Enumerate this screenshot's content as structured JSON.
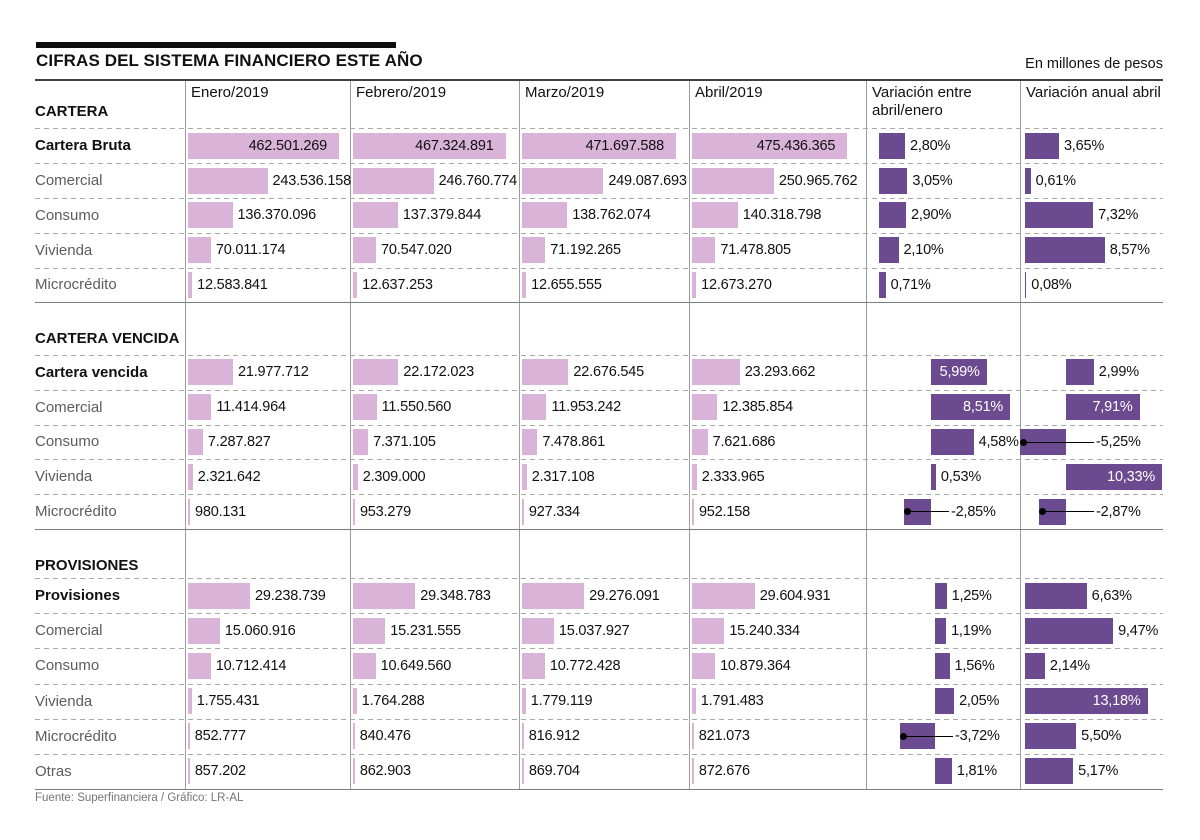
{
  "title": "CIFRAS DEL SISTEMA FINANCIERO ESTE AÑO",
  "unit_note": "En millones de pesos",
  "source_note": "Fuente: Superfinanciera / Gráfico: LR-AL",
  "colors": {
    "bar_light": "#d9b3d8",
    "bar_dark": "#6b4a8f",
    "negative_dot": "#000000"
  },
  "chart_data": {
    "type": "table",
    "unit": "millones de pesos",
    "month_columns": [
      "Enero/2019",
      "Febrero/2019",
      "Marzo/2019",
      "Abril/2019"
    ],
    "variation_columns": [
      "Variación entre abril/enero",
      "Variación anual abril"
    ],
    "sections": [
      {
        "name": "CARTERA",
        "rows": [
          {
            "label": "Cartera Bruta",
            "emphasis": true,
            "inside": true,
            "values": [
              462501269,
              467324891,
              471697588,
              475436365
            ],
            "value_labels": [
              "462.501.269",
              "467.324.891",
              "471.697.588",
              "475.436.365"
            ],
            "var_period": {
              "value": 2.8,
              "label": "2,80%",
              "inside": false
            },
            "var_annual": {
              "value": 3.65,
              "label": "3,65%",
              "inside": false
            }
          },
          {
            "label": "Comercial",
            "emphasis": false,
            "inside": false,
            "values": [
              243536158,
              246760774,
              249087693,
              250965762
            ],
            "value_labels": [
              "243.536.158",
              "246.760.774",
              "249.087.693",
              "250.965.762"
            ],
            "var_period": {
              "value": 3.05,
              "label": "3,05%",
              "inside": false
            },
            "var_annual": {
              "value": 0.61,
              "label": "0,61%",
              "inside": false
            }
          },
          {
            "label": "Consumo",
            "emphasis": false,
            "inside": false,
            "values": [
              136370096,
              137379844,
              138762074,
              140318798
            ],
            "value_labels": [
              "136.370.096",
              "137.379.844",
              "138.762.074",
              "140.318.798"
            ],
            "var_period": {
              "value": 2.9,
              "label": "2,90%",
              "inside": false
            },
            "var_annual": {
              "value": 7.32,
              "label": "7,32%",
              "inside": false
            }
          },
          {
            "label": "Vivienda",
            "emphasis": false,
            "inside": false,
            "values": [
              70011174,
              70547020,
              71192265,
              71478805
            ],
            "value_labels": [
              "70.011.174",
              "70.547.020",
              "71.192.265",
              "71.478.805"
            ],
            "var_period": {
              "value": 2.1,
              "label": "2,10%",
              "inside": false
            },
            "var_annual": {
              "value": 8.57,
              "label": "8,57%",
              "inside": false
            }
          },
          {
            "label": "Microcrédito",
            "emphasis": false,
            "inside": false,
            "values": [
              12583841,
              12637253,
              12655555,
              12673270
            ],
            "value_labels": [
              "12.583.841",
              "12.637.253",
              "12.655.555",
              "12.673.270"
            ],
            "var_period": {
              "value": 0.71,
              "label": "0,71%",
              "inside": false
            },
            "var_annual": {
              "value": 0.08,
              "label": "0,08%",
              "inside": false
            }
          }
        ]
      },
      {
        "name": "CARTERA VENCIDA",
        "rows": [
          {
            "label": "Cartera vencida",
            "emphasis": true,
            "inside": false,
            "values": [
              21977712,
              22172023,
              22676545,
              23293662
            ],
            "value_labels": [
              "21.977.712",
              "22.172.023",
              "22.676.545",
              "23.293.662"
            ],
            "var_period": {
              "value": 5.99,
              "label": "5,99%",
              "inside": true
            },
            "var_annual": {
              "value": 2.99,
              "label": "2,99%",
              "inside": false
            }
          },
          {
            "label": "Comercial",
            "emphasis": false,
            "inside": false,
            "values": [
              11414964,
              11550560,
              11953242,
              12385854
            ],
            "value_labels": [
              "11.414.964",
              "11.550.560",
              "11.953.242",
              "12.385.854"
            ],
            "var_period": {
              "value": 8.51,
              "label": "8,51%",
              "inside": true
            },
            "var_annual": {
              "value": 7.91,
              "label": "7,91%",
              "inside": true
            }
          },
          {
            "label": "Consumo",
            "emphasis": false,
            "inside": false,
            "values": [
              7287827,
              7371105,
              7478861,
              7621686
            ],
            "value_labels": [
              "7.287.827",
              "7.371.105",
              "7.478.861",
              "7.621.686"
            ],
            "var_period": {
              "value": 4.58,
              "label": "4,58%",
              "inside": false
            },
            "var_annual": {
              "value": -5.25,
              "label": "-5,25%",
              "inside": false
            }
          },
          {
            "label": "Vivienda",
            "emphasis": false,
            "inside": false,
            "values": [
              2321642,
              2309000,
              2317108,
              2333965
            ],
            "value_labels": [
              "2.321.642",
              "2.309.000",
              "2.317.108",
              "2.333.965"
            ],
            "var_period": {
              "value": 0.53,
              "label": "0,53%",
              "inside": false
            },
            "var_annual": {
              "value": 10.33,
              "label": "10,33%",
              "inside": true
            }
          },
          {
            "label": "Microcrédito",
            "emphasis": false,
            "inside": false,
            "values": [
              980131,
              953279,
              927334,
              952158
            ],
            "value_labels": [
              "980.131",
              "953.279",
              "927.334",
              "952.158"
            ],
            "var_period": {
              "value": -2.85,
              "label": "-2,85%",
              "inside": false
            },
            "var_annual": {
              "value": -2.87,
              "label": "-2,87%",
              "inside": false
            }
          }
        ]
      },
      {
        "name": "PROVISIONES",
        "rows": [
          {
            "label": "Provisiones",
            "emphasis": true,
            "inside": false,
            "values": [
              29238739,
              29348783,
              29276091,
              29604931
            ],
            "value_labels": [
              "29.238.739",
              "29.348.783",
              "29.276.091",
              "29.604.931"
            ],
            "var_period": {
              "value": 1.25,
              "label": "1,25%",
              "inside": false
            },
            "var_annual": {
              "value": 6.63,
              "label": "6,63%",
              "inside": false
            }
          },
          {
            "label": "Comercial",
            "emphasis": false,
            "inside": false,
            "values": [
              15060916,
              15231555,
              15037927,
              15240334
            ],
            "value_labels": [
              "15.060.916",
              "15.231.555",
              "15.037.927",
              "15.240.334"
            ],
            "var_period": {
              "value": 1.19,
              "label": "1,19%",
              "inside": false
            },
            "var_annual": {
              "value": 9.47,
              "label": "9,47%",
              "inside": false
            }
          },
          {
            "label": "Consumo",
            "emphasis": false,
            "inside": false,
            "values": [
              10712414,
              10649560,
              10772428,
              10879364
            ],
            "value_labels": [
              "10.712.414",
              "10.649.560",
              "10.772.428",
              "10.879.364"
            ],
            "var_period": {
              "value": 1.56,
              "label": "1,56%",
              "inside": false
            },
            "var_annual": {
              "value": 2.14,
              "label": "2,14%",
              "inside": false
            }
          },
          {
            "label": "Vivienda",
            "emphasis": false,
            "inside": false,
            "values": [
              1755431,
              1764288,
              1779119,
              1791483
            ],
            "value_labels": [
              "1.755.431",
              "1.764.288",
              "1.779.119",
              "1.791.483"
            ],
            "var_period": {
              "value": 2.05,
              "label": "2,05%",
              "inside": false
            },
            "var_annual": {
              "value": 13.18,
              "label": "13,18%",
              "inside": true
            }
          },
          {
            "label": "Microcrédito",
            "emphasis": false,
            "inside": false,
            "values": [
              852777,
              840476,
              816912,
              821073
            ],
            "value_labels": [
              "852.777",
              "840.476",
              "816.912",
              "821.073"
            ],
            "var_period": {
              "value": -3.72,
              "label": "-3,72%",
              "inside": false
            },
            "var_annual": {
              "value": 5.5,
              "label": "5,50%",
              "inside": false
            }
          },
          {
            "label": "Otras",
            "emphasis": false,
            "inside": false,
            "values": [
              857202,
              862903,
              869704,
              872676
            ],
            "value_labels": [
              "857.202",
              "862.903",
              "869.704",
              "872.676"
            ],
            "var_period": {
              "value": 1.81,
              "label": "1,81%",
              "inside": false
            },
            "var_annual": {
              "value": 5.17,
              "label": "5,17%",
              "inside": false
            }
          }
        ]
      }
    ]
  }
}
